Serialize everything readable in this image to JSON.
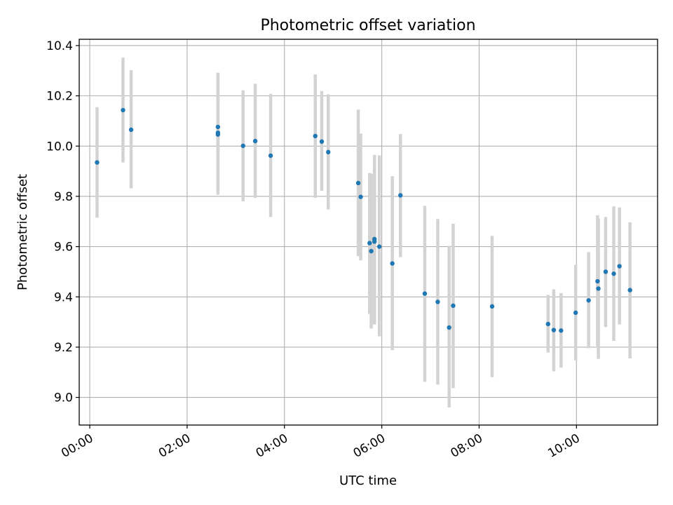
{
  "chart_data": {
    "type": "scatter",
    "title": "Photometric offset variation",
    "xlabel": "UTC time",
    "ylabel": "Photometric offset",
    "x_ticks": [
      "00:00",
      "02:00",
      "04:00",
      "06:00",
      "08:00",
      "10:00"
    ],
    "x_tick_hours": [
      0,
      2,
      4,
      6,
      8,
      10
    ],
    "y_ticks": [
      "9.0",
      "9.2",
      "9.4",
      "9.6",
      "9.8",
      "10.0",
      "10.2",
      "10.4"
    ],
    "y_tick_values": [
      9.0,
      9.2,
      9.4,
      9.6,
      9.8,
      10.0,
      10.2,
      10.4
    ],
    "xlim": [
      "23:47",
      "11:40"
    ],
    "ylim": [
      8.89,
      10.425
    ],
    "grid": true,
    "marker_color": "#1f77b4",
    "errorbar_color": "#d3d3d3",
    "points": [
      {
        "x": "00:09",
        "y": 9.935,
        "lo": 9.715,
        "hi": 10.155
      },
      {
        "x": "00:41",
        "y": 10.143,
        "lo": 9.935,
        "hi": 10.352
      },
      {
        "x": "00:51",
        "y": 10.065,
        "lo": 9.832,
        "hi": 10.302
      },
      {
        "x": "02:38",
        "y": 10.076,
        "lo": 9.861,
        "hi": 10.292
      },
      {
        "x": "02:38",
        "y": 10.053,
        "lo": 9.82,
        "hi": 10.288
      },
      {
        "x": "02:38",
        "y": 10.046,
        "lo": 9.806,
        "hi": 10.285
      },
      {
        "x": "03:09",
        "y": 10.001,
        "lo": 9.78,
        "hi": 10.222
      },
      {
        "x": "03:24",
        "y": 10.02,
        "lo": 9.794,
        "hi": 10.248
      },
      {
        "x": "03:43",
        "y": 9.962,
        "lo": 9.718,
        "hi": 10.208
      },
      {
        "x": "04:38",
        "y": 10.04,
        "lo": 9.794,
        "hi": 10.285
      },
      {
        "x": "04:46",
        "y": 10.018,
        "lo": 9.822,
        "hi": 10.219
      },
      {
        "x": "04:54",
        "y": 9.976,
        "lo": 9.748,
        "hi": 10.206
      },
      {
        "x": "05:31",
        "y": 9.853,
        "lo": 9.562,
        "hi": 10.145
      },
      {
        "x": "05:34",
        "y": 9.798,
        "lo": 9.545,
        "hi": 10.05
      },
      {
        "x": "05:45",
        "y": 9.614,
        "lo": 9.332,
        "hi": 9.893
      },
      {
        "x": "05:47",
        "y": 9.582,
        "lo": 9.274,
        "hi": 9.89
      },
      {
        "x": "05:51",
        "y": 9.63,
        "lo": 9.295,
        "hi": 9.965
      },
      {
        "x": "05:51",
        "y": 9.62,
        "lo": 9.29,
        "hi": 9.962
      },
      {
        "x": "05:57",
        "y": 9.6,
        "lo": 9.243,
        "hi": 9.963
      },
      {
        "x": "06:13",
        "y": 9.533,
        "lo": 9.188,
        "hi": 9.88
      },
      {
        "x": "06:23",
        "y": 9.804,
        "lo": 9.558,
        "hi": 10.048
      },
      {
        "x": "06:53",
        "y": 9.413,
        "lo": 9.062,
        "hi": 9.762
      },
      {
        "x": "07:09",
        "y": 9.38,
        "lo": 9.051,
        "hi": 9.71
      },
      {
        "x": "07:23",
        "y": 9.278,
        "lo": 8.96,
        "hi": 9.603
      },
      {
        "x": "07:28",
        "y": 9.365,
        "lo": 9.037,
        "hi": 9.691
      },
      {
        "x": "08:16",
        "y": 9.362,
        "lo": 9.081,
        "hi": 9.643
      },
      {
        "x": "09:25",
        "y": 9.292,
        "lo": 9.178,
        "hi": 9.408
      },
      {
        "x": "09:32",
        "y": 9.268,
        "lo": 9.104,
        "hi": 9.43
      },
      {
        "x": "09:41",
        "y": 9.266,
        "lo": 9.118,
        "hi": 9.415
      },
      {
        "x": "09:59",
        "y": 9.337,
        "lo": 9.147,
        "hi": 9.528
      },
      {
        "x": "10:15",
        "y": 9.386,
        "lo": 9.196,
        "hi": 9.578
      },
      {
        "x": "10:26",
        "y": 9.462,
        "lo": 9.198,
        "hi": 9.725
      },
      {
        "x": "10:27",
        "y": 9.433,
        "lo": 9.153,
        "hi": 9.712
      },
      {
        "x": "10:36",
        "y": 9.5,
        "lo": 9.28,
        "hi": 9.718
      },
      {
        "x": "10:46",
        "y": 9.492,
        "lo": 9.225,
        "hi": 9.76
      },
      {
        "x": "10:53",
        "y": 9.522,
        "lo": 9.29,
        "hi": 9.756
      },
      {
        "x": "11:06",
        "y": 9.427,
        "lo": 9.155,
        "hi": 9.697
      }
    ]
  }
}
